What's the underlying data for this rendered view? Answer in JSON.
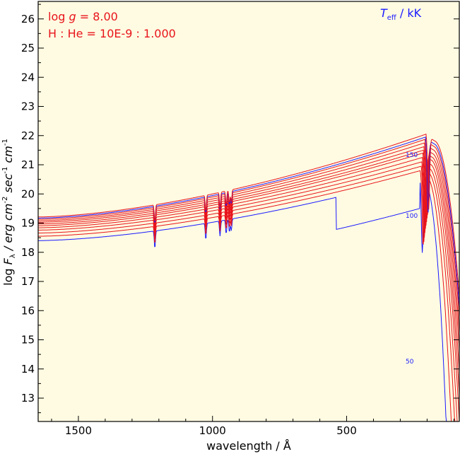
{
  "chart_data": {
    "type": "line",
    "xlabel": "wavelength / Å",
    "ylabel": {
      "prefix": "log ",
      "F": "F",
      "sub": "λ",
      "unit_a": " / erg cm",
      "sup1": "-2",
      "unit_b": " sec",
      "sup2": "-1",
      "unit_c": " cm",
      "sup3": "-1"
    },
    "x_ticks": [
      1500,
      1000,
      500
    ],
    "y_ticks": [
      13,
      14,
      15,
      16,
      17,
      18,
      19,
      20,
      21,
      22,
      23,
      24,
      25,
      26
    ],
    "xlim": [
      1650,
      80
    ],
    "ylim": [
      12.2,
      26.6
    ],
    "annotations": {
      "logg_prefix": "log ",
      "logg_var": "g",
      "logg_value": " = 8.00",
      "abundance": "H : He = 10E-9 : 1.000",
      "teff_var": "T",
      "teff_sub": "eff",
      "teff_unit": " / kK"
    },
    "curve_labels": [
      "150",
      "100",
      "50"
    ],
    "series": [
      {
        "teff": 50,
        "color": "#1a1aff",
        "base": 18.4,
        "w_peak": 228,
        "w_cut": 150,
        "peak": 20.6,
        "end": 12.2
      },
      {
        "teff": 60,
        "color": "#e8141b",
        "base": 18.55,
        "w_peak": 225,
        "w_cut": 135,
        "peak": 20.8,
        "end": 12.2
      },
      {
        "teff": 70,
        "color": "#e8141b",
        "base": 18.66,
        "w_peak": 222,
        "w_cut": 125,
        "peak": 20.95,
        "end": 12.2
      },
      {
        "teff": 80,
        "color": "#e8141b",
        "base": 18.76,
        "w_peak": 220,
        "w_cut": 118,
        "peak": 21.1,
        "end": 12.2
      },
      {
        "teff": 90,
        "color": "#e8141b",
        "base": 18.84,
        "w_peak": 218,
        "w_cut": 112,
        "peak": 21.25,
        "end": 12.2
      },
      {
        "teff": 100,
        "color": "#e8141b",
        "base": 18.91,
        "w_peak": 216,
        "w_cut": 108,
        "peak": 21.4,
        "end": 12.2
      },
      {
        "teff": 110,
        "color": "#e8141b",
        "base": 18.97,
        "w_peak": 214,
        "w_cut": 104,
        "peak": 21.5,
        "end": 12.2
      },
      {
        "teff": 120,
        "color": "#e8141b",
        "base": 19.03,
        "w_peak": 212,
        "w_cut": 100,
        "peak": 21.62,
        "end": 12.2
      },
      {
        "teff": 130,
        "color": "#e8141b",
        "base": 19.08,
        "w_peak": 210,
        "w_cut": 97,
        "peak": 21.75,
        "end": 12.2
      },
      {
        "teff": 140,
        "color": "#e8141b",
        "base": 19.13,
        "w_peak": 208,
        "w_cut": 94,
        "peak": 21.87,
        "end": 12.2
      },
      {
        "teff": 150,
        "color": "#1a1aff",
        "base": 19.17,
        "w_peak": 206,
        "w_cut": 92,
        "peak": 21.95,
        "end": 12.2
      },
      {
        "teff": 160,
        "color": "#e8141b",
        "base": 19.21,
        "w_peak": 204,
        "w_cut": 90,
        "peak": 22.05,
        "end": 12.2
      }
    ],
    "colors": {
      "background": "#fffbe2",
      "red": "#e8141b",
      "blue": "#1a1aff"
    }
  }
}
